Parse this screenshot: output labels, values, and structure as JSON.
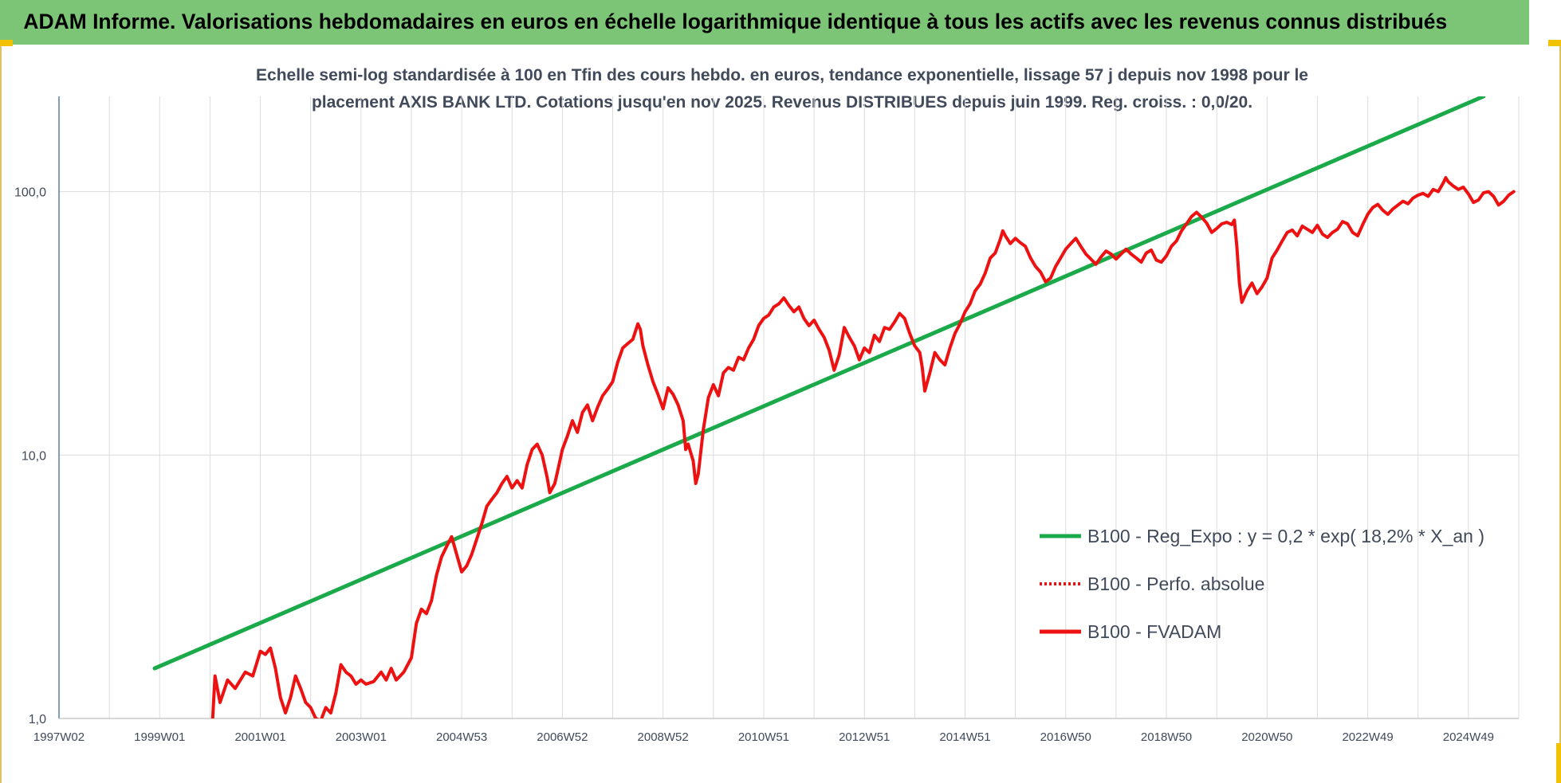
{
  "header": {
    "title": "ADAM Informe. Valorisations hebdomadaires en euros en échelle logarithmique identique à tous les actifs avec les revenus connus distribués"
  },
  "colors": {
    "banner": "#7cc576",
    "trend": "#1aaa4a",
    "fvadam": "#ee1111",
    "grid": "#dcdcdc",
    "text": "#404a5a",
    "corner": "#f2c200"
  },
  "chart_data": {
    "type": "line",
    "title_lines": [
      "Echelle semi-log standardisée à 100 en Tfin des cours hebdo. en euros, tendance exponentielle, lissage 57 j depuis nov 1998 pour le",
      "placement AXIS BANK LTD. Cotations jusqu'en nov 2025. Revenus DISTRIBUES depuis juin 1999. Reg. croiss. : 0,0/20."
    ],
    "y_scale": "log",
    "ylim": [
      1,
      230
    ],
    "y_ticks": [
      {
        "value": 1,
        "label": "1,0"
      },
      {
        "value": 10,
        "label": "10,0"
      },
      {
        "value": 100,
        "label": "100,0"
      }
    ],
    "xlim": [
      1997.0,
      2026.0
    ],
    "x_ticks": [
      {
        "value": 1997.0,
        "label": "1997W02"
      },
      {
        "value": 1999.0,
        "label": "1999W01"
      },
      {
        "value": 2001.0,
        "label": "2001W01"
      },
      {
        "value": 2003.0,
        "label": "2003W01"
      },
      {
        "value": 2005.0,
        "label": "2004W53"
      },
      {
        "value": 2007.0,
        "label": "2006W52"
      },
      {
        "value": 2009.0,
        "label": "2008W52"
      },
      {
        "value": 2011.0,
        "label": "2010W51"
      },
      {
        "value": 2013.0,
        "label": "2012W51"
      },
      {
        "value": 2015.0,
        "label": "2014W51"
      },
      {
        "value": 2017.0,
        "label": "2016W50"
      },
      {
        "value": 2019.0,
        "label": "2018W50"
      },
      {
        "value": 2021.0,
        "label": "2020W50"
      },
      {
        "value": 2023.0,
        "label": "2022W49"
      },
      {
        "value": 2025.0,
        "label": "2024W49"
      }
    ],
    "grid": true,
    "legend_position": "bottom-right",
    "series": [
      {
        "name": "B100 - Reg_Expo : y = 0,2 * exp( 18,2% *  X_an )",
        "style": "solid",
        "color": "#1aaa4a",
        "points": [
          [
            1998.9,
            1.55
          ],
          [
            2025.3,
            230
          ]
        ]
      },
      {
        "name": "B100 - Perfo. absolue",
        "style": "dotted",
        "color": "#ee1111",
        "points": []
      },
      {
        "name": "B100 - FVADAM",
        "style": "solid",
        "color": "#ee1111",
        "points": [
          [
            2000.05,
            0.98
          ],
          [
            2000.1,
            1.45
          ],
          [
            2000.2,
            1.15
          ],
          [
            2000.35,
            1.4
          ],
          [
            2000.5,
            1.3
          ],
          [
            2000.7,
            1.5
          ],
          [
            2000.85,
            1.45
          ],
          [
            2001.0,
            1.8
          ],
          [
            2001.1,
            1.75
          ],
          [
            2001.2,
            1.85
          ],
          [
            2001.3,
            1.55
          ],
          [
            2001.4,
            1.2
          ],
          [
            2001.5,
            1.05
          ],
          [
            2001.6,
            1.2
          ],
          [
            2001.7,
            1.45
          ],
          [
            2001.8,
            1.3
          ],
          [
            2001.9,
            1.15
          ],
          [
            2002.0,
            1.1
          ],
          [
            2002.1,
            1.0
          ],
          [
            2002.2,
            0.98
          ],
          [
            2002.3,
            1.1
          ],
          [
            2002.4,
            1.05
          ],
          [
            2002.5,
            1.25
          ],
          [
            2002.6,
            1.6
          ],
          [
            2002.7,
            1.5
          ],
          [
            2002.8,
            1.45
          ],
          [
            2002.9,
            1.35
          ],
          [
            2003.0,
            1.4
          ],
          [
            2003.1,
            1.35
          ],
          [
            2003.25,
            1.38
          ],
          [
            2003.4,
            1.5
          ],
          [
            2003.5,
            1.4
          ],
          [
            2003.6,
            1.55
          ],
          [
            2003.7,
            1.4
          ],
          [
            2003.85,
            1.5
          ],
          [
            2004.0,
            1.7
          ],
          [
            2004.1,
            2.3
          ],
          [
            2004.2,
            2.6
          ],
          [
            2004.3,
            2.5
          ],
          [
            2004.4,
            2.8
          ],
          [
            2004.5,
            3.5
          ],
          [
            2004.6,
            4.1
          ],
          [
            2004.7,
            4.5
          ],
          [
            2004.8,
            4.9
          ],
          [
            2004.9,
            4.2
          ],
          [
            2005.0,
            3.6
          ],
          [
            2005.1,
            3.8
          ],
          [
            2005.2,
            4.2
          ],
          [
            2005.3,
            4.8
          ],
          [
            2005.4,
            5.5
          ],
          [
            2005.5,
            6.4
          ],
          [
            2005.6,
            6.8
          ],
          [
            2005.7,
            7.2
          ],
          [
            2005.8,
            7.8
          ],
          [
            2005.9,
            8.3
          ],
          [
            2006.0,
            7.5
          ],
          [
            2006.1,
            8.0
          ],
          [
            2006.2,
            7.5
          ],
          [
            2006.3,
            9.2
          ],
          [
            2006.4,
            10.5
          ],
          [
            2006.5,
            11.0
          ],
          [
            2006.6,
            10.0
          ],
          [
            2006.7,
            8.2
          ],
          [
            2006.75,
            7.2
          ],
          [
            2006.85,
            7.8
          ],
          [
            2006.9,
            8.6
          ],
          [
            2007.0,
            10.5
          ],
          [
            2007.1,
            11.8
          ],
          [
            2007.2,
            13.5
          ],
          [
            2007.3,
            12.2
          ],
          [
            2007.4,
            14.5
          ],
          [
            2007.5,
            15.5
          ],
          [
            2007.6,
            13.5
          ],
          [
            2007.7,
            15.2
          ],
          [
            2007.8,
            16.8
          ],
          [
            2007.9,
            17.8
          ],
          [
            2008.0,
            19.0
          ],
          [
            2008.1,
            22.5
          ],
          [
            2008.2,
            25.5
          ],
          [
            2008.3,
            26.5
          ],
          [
            2008.4,
            27.5
          ],
          [
            2008.5,
            31.5
          ],
          [
            2008.55,
            30.0
          ],
          [
            2008.6,
            26.0
          ],
          [
            2008.7,
            22.0
          ],
          [
            2008.8,
            19.0
          ],
          [
            2008.9,
            17.0
          ],
          [
            2009.0,
            15.0
          ],
          [
            2009.1,
            18.0
          ],
          [
            2009.2,
            17.0
          ],
          [
            2009.3,
            15.5
          ],
          [
            2009.4,
            13.5
          ],
          [
            2009.45,
            10.5
          ],
          [
            2009.5,
            11.0
          ],
          [
            2009.6,
            9.5
          ],
          [
            2009.65,
            7.8
          ],
          [
            2009.7,
            8.5
          ],
          [
            2009.8,
            12.5
          ],
          [
            2009.9,
            16.5
          ],
          [
            2010.0,
            18.5
          ],
          [
            2010.1,
            16.8
          ],
          [
            2010.2,
            20.5
          ],
          [
            2010.3,
            21.5
          ],
          [
            2010.4,
            21.0
          ],
          [
            2010.5,
            23.5
          ],
          [
            2010.6,
            23.0
          ],
          [
            2010.7,
            25.5
          ],
          [
            2010.8,
            27.5
          ],
          [
            2010.9,
            31.0
          ],
          [
            2011.0,
            33.0
          ],
          [
            2011.1,
            34.0
          ],
          [
            2011.2,
            36.5
          ],
          [
            2011.3,
            37.5
          ],
          [
            2011.4,
            39.5
          ],
          [
            2011.5,
            37.0
          ],
          [
            2011.6,
            35.0
          ],
          [
            2011.7,
            36.5
          ],
          [
            2011.8,
            33.0
          ],
          [
            2011.9,
            31.0
          ],
          [
            2012.0,
            32.5
          ],
          [
            2012.1,
            30.0
          ],
          [
            2012.2,
            28.0
          ],
          [
            2012.3,
            25.0
          ],
          [
            2012.4,
            21.0
          ],
          [
            2012.5,
            24.0
          ],
          [
            2012.6,
            30.5
          ],
          [
            2012.7,
            28.0
          ],
          [
            2012.8,
            26.0
          ],
          [
            2012.9,
            23.0
          ],
          [
            2013.0,
            25.5
          ],
          [
            2013.1,
            24.5
          ],
          [
            2013.2,
            28.5
          ],
          [
            2013.3,
            27.0
          ],
          [
            2013.4,
            30.5
          ],
          [
            2013.5,
            30.0
          ],
          [
            2013.6,
            32.0
          ],
          [
            2013.7,
            34.5
          ],
          [
            2013.8,
            33.0
          ],
          [
            2013.9,
            29.0
          ],
          [
            2014.0,
            26.0
          ],
          [
            2014.1,
            24.5
          ],
          [
            2014.15,
            21.5
          ],
          [
            2014.2,
            17.5
          ],
          [
            2014.3,
            20.5
          ],
          [
            2014.4,
            24.5
          ],
          [
            2014.5,
            23.0
          ],
          [
            2014.6,
            22.0
          ],
          [
            2014.7,
            25.5
          ],
          [
            2014.8,
            29.0
          ],
          [
            2014.9,
            31.5
          ],
          [
            2015.0,
            35.0
          ],
          [
            2015.1,
            37.5
          ],
          [
            2015.2,
            42.0
          ],
          [
            2015.3,
            44.5
          ],
          [
            2015.4,
            49.0
          ],
          [
            2015.5,
            56.0
          ],
          [
            2015.6,
            58.5
          ],
          [
            2015.7,
            66.0
          ],
          [
            2015.75,
            71.0
          ],
          [
            2015.8,
            68.0
          ],
          [
            2015.9,
            63.5
          ],
          [
            2016.0,
            66.5
          ],
          [
            2016.1,
            64.0
          ],
          [
            2016.2,
            62.0
          ],
          [
            2016.3,
            56.0
          ],
          [
            2016.4,
            52.0
          ],
          [
            2016.5,
            49.5
          ],
          [
            2016.6,
            45.5
          ],
          [
            2016.7,
            47.0
          ],
          [
            2016.8,
            52.0
          ],
          [
            2016.9,
            56.0
          ],
          [
            2017.0,
            60.5
          ],
          [
            2017.1,
            63.5
          ],
          [
            2017.2,
            66.5
          ],
          [
            2017.3,
            62.0
          ],
          [
            2017.4,
            58.0
          ],
          [
            2017.5,
            55.5
          ],
          [
            2017.6,
            53.0
          ],
          [
            2017.7,
            56.5
          ],
          [
            2017.8,
            59.5
          ],
          [
            2017.9,
            58.0
          ],
          [
            2018.0,
            55.5
          ],
          [
            2018.1,
            58.0
          ],
          [
            2018.2,
            60.5
          ],
          [
            2018.3,
            58.0
          ],
          [
            2018.4,
            56.0
          ],
          [
            2018.5,
            54.0
          ],
          [
            2018.6,
            58.5
          ],
          [
            2018.7,
            60.0
          ],
          [
            2018.8,
            55.0
          ],
          [
            2018.9,
            54.0
          ],
          [
            2019.0,
            57.0
          ],
          [
            2019.1,
            62.0
          ],
          [
            2019.2,
            65.0
          ],
          [
            2019.3,
            71.0
          ],
          [
            2019.4,
            75.5
          ],
          [
            2019.5,
            80.5
          ],
          [
            2019.6,
            83.5
          ],
          [
            2019.7,
            80.0
          ],
          [
            2019.8,
            76.0
          ],
          [
            2019.9,
            70.0
          ],
          [
            2020.0,
            72.5
          ],
          [
            2020.1,
            75.5
          ],
          [
            2020.2,
            76.5
          ],
          [
            2020.3,
            75.0
          ],
          [
            2020.35,
            78.0
          ],
          [
            2020.4,
            62.0
          ],
          [
            2020.45,
            45.0
          ],
          [
            2020.5,
            38.0
          ],
          [
            2020.6,
            42.0
          ],
          [
            2020.7,
            45.0
          ],
          [
            2020.8,
            41.0
          ],
          [
            2020.9,
            43.5
          ],
          [
            2021.0,
            47.0
          ],
          [
            2021.1,
            56.0
          ],
          [
            2021.2,
            60.0
          ],
          [
            2021.3,
            65.0
          ],
          [
            2021.4,
            70.0
          ],
          [
            2021.5,
            71.5
          ],
          [
            2021.6,
            68.0
          ],
          [
            2021.7,
            74.0
          ],
          [
            2021.8,
            72.0
          ],
          [
            2021.9,
            70.0
          ],
          [
            2022.0,
            74.5
          ],
          [
            2022.1,
            69.0
          ],
          [
            2022.2,
            67.0
          ],
          [
            2022.3,
            70.0
          ],
          [
            2022.4,
            72.0
          ],
          [
            2022.5,
            77.0
          ],
          [
            2022.6,
            75.5
          ],
          [
            2022.7,
            70.0
          ],
          [
            2022.8,
            68.0
          ],
          [
            2022.9,
            75.0
          ],
          [
            2023.0,
            82.0
          ],
          [
            2023.1,
            87.0
          ],
          [
            2023.2,
            89.5
          ],
          [
            2023.3,
            85.0
          ],
          [
            2023.4,
            82.0
          ],
          [
            2023.5,
            86.0
          ],
          [
            2023.6,
            89.0
          ],
          [
            2023.7,
            92.0
          ],
          [
            2023.8,
            90.0
          ],
          [
            2023.9,
            94.5
          ],
          [
            2024.0,
            97.0
          ],
          [
            2024.1,
            98.5
          ],
          [
            2024.2,
            96.0
          ],
          [
            2024.3,
            102.0
          ],
          [
            2024.4,
            100.0
          ],
          [
            2024.5,
            108.0
          ],
          [
            2024.55,
            113.0
          ],
          [
            2024.6,
            109.0
          ],
          [
            2024.7,
            105.0
          ],
          [
            2024.8,
            102.0
          ],
          [
            2024.9,
            104.0
          ],
          [
            2025.0,
            98.0
          ],
          [
            2025.1,
            91.0
          ],
          [
            2025.2,
            93.0
          ],
          [
            2025.3,
            99.0
          ],
          [
            2025.4,
            100.0
          ],
          [
            2025.5,
            96.0
          ],
          [
            2025.6,
            89.0
          ],
          [
            2025.7,
            92.0
          ],
          [
            2025.8,
            97.0
          ],
          [
            2025.9,
            100.0
          ]
        ]
      }
    ]
  }
}
